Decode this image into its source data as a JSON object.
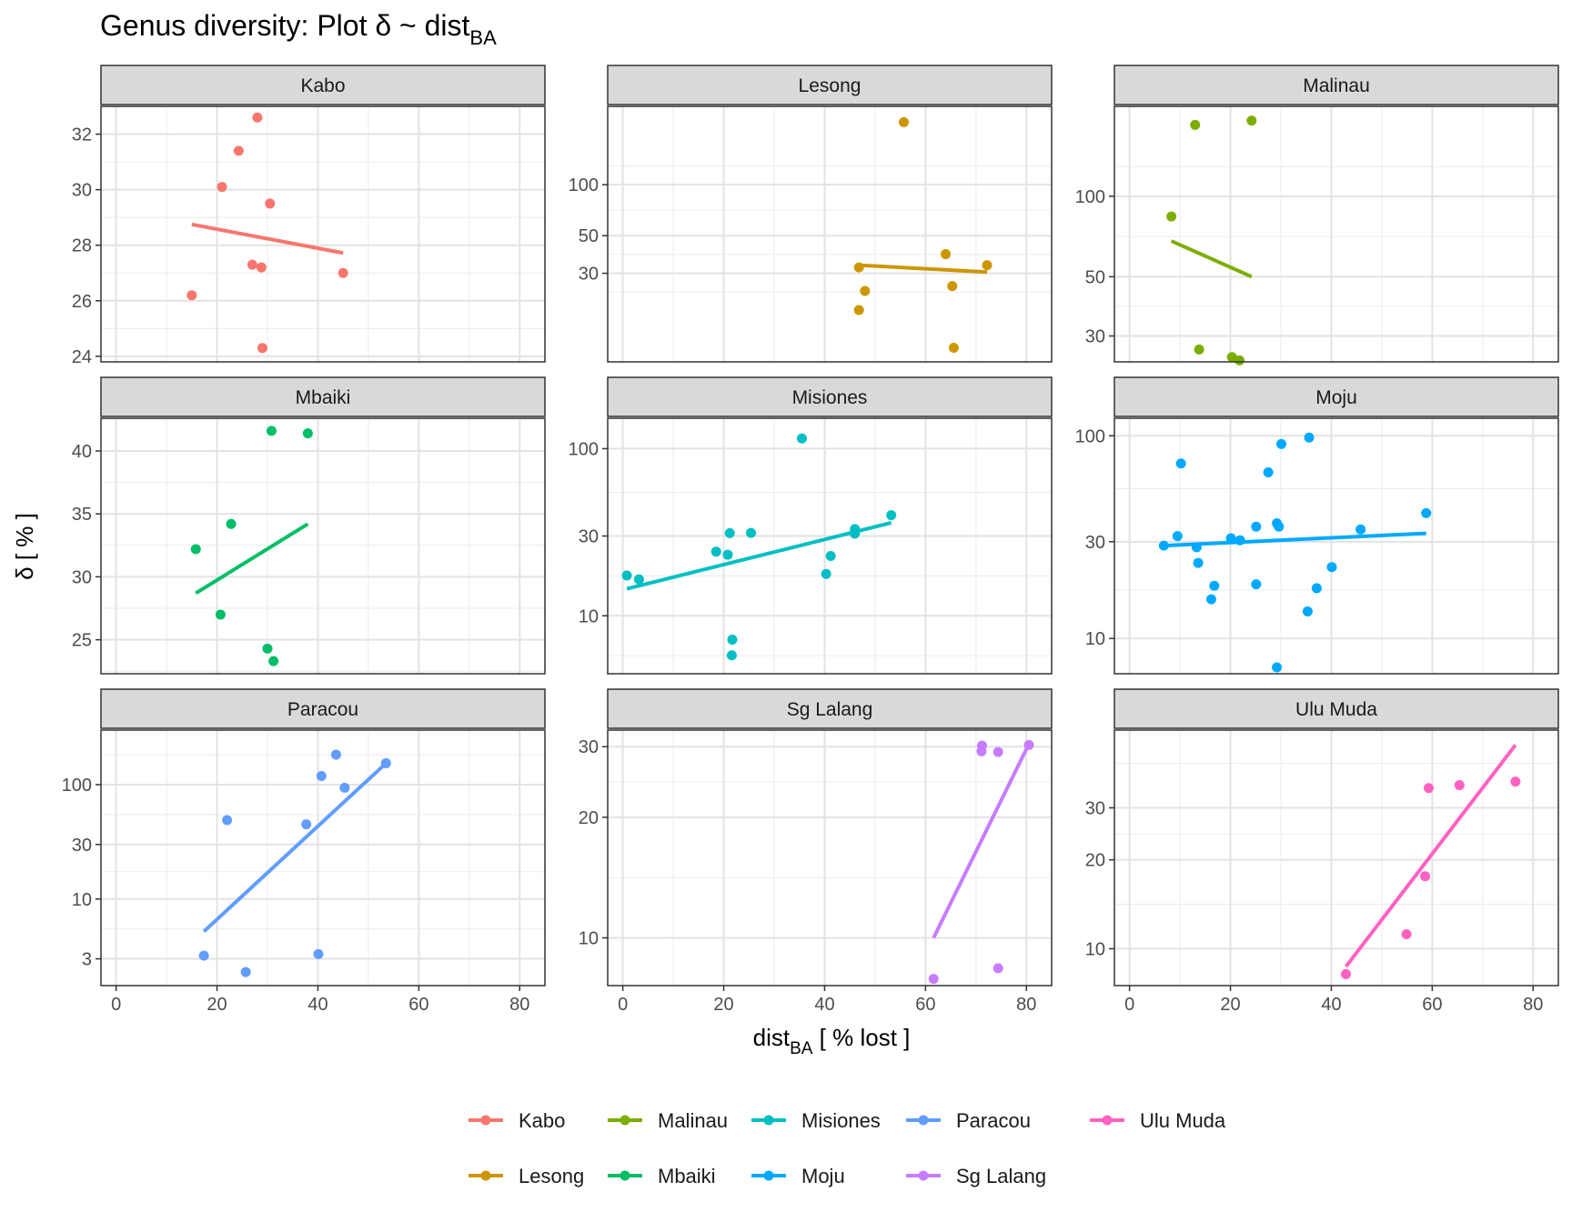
{
  "chart_data": {
    "type": "scatter",
    "title_parts": {
      "main": "Genus diversity: Plot δ ~ dist",
      "sub": "BA"
    },
    "xlabel_parts": {
      "main": "dist",
      "sub": "BA",
      "tail": " [ % lost ]"
    },
    "ylabel": "δ [ % ]",
    "x_range": [
      -3,
      85
    ],
    "x_ticks": [
      0,
      20,
      40,
      60,
      80
    ],
    "facets": [
      {
        "name": "Kabo",
        "color": "#F8766D",
        "y_scale": "linear",
        "y_range": [
          23.8,
          33.0
        ],
        "y_ticks": [
          24,
          26,
          28,
          30,
          32
        ],
        "points": [
          [
            28.0,
            32.6
          ],
          [
            24.3,
            31.4
          ],
          [
            21.0,
            30.1
          ],
          [
            30.5,
            29.5
          ],
          [
            27.0,
            27.3
          ],
          [
            28.8,
            27.2
          ],
          [
            45.0,
            27.0
          ],
          [
            15.0,
            26.2
          ],
          [
            29.0,
            24.3
          ]
        ],
        "fit": [
          [
            15.0,
            28.75
          ],
          [
            45.0,
            27.72
          ]
        ]
      },
      {
        "name": "Lesong",
        "color": "#CD9600",
        "y_scale": "log",
        "y_range": [
          9.0,
          290
        ],
        "y_ticks": [
          30,
          50,
          100
        ],
        "points": [
          [
            55.7,
            234
          ],
          [
            46.8,
            32.5
          ],
          [
            64.0,
            38.9
          ],
          [
            72.2,
            33.5
          ],
          [
            48.0,
            23.6
          ],
          [
            65.3,
            25.2
          ],
          [
            46.8,
            18.2
          ],
          [
            65.6,
            10.9
          ]
        ],
        "fit": [
          [
            46.8,
            33.5
          ],
          [
            72.2,
            30.5
          ]
        ]
      },
      {
        "name": "Malinau",
        "color": "#7CAE00",
        "y_scale": "log",
        "y_range": [
          24.0,
          217
        ],
        "y_ticks": [
          30,
          50,
          100
        ],
        "points": [
          [
            24.2,
            192
          ],
          [
            13.0,
            185
          ],
          [
            8.3,
            84
          ],
          [
            13.8,
            26.7
          ],
          [
            20.3,
            25.0
          ],
          [
            21.8,
            24.3
          ]
        ],
        "fit": [
          [
            8.3,
            68
          ],
          [
            24.2,
            50
          ]
        ]
      },
      {
        "name": "Mbaiki",
        "color": "#00BE67",
        "y_scale": "linear",
        "y_range": [
          22.3,
          42.6
        ],
        "y_ticks": [
          25,
          30,
          35,
          40
        ],
        "points": [
          [
            30.8,
            41.6
          ],
          [
            38.0,
            41.4
          ],
          [
            22.8,
            34.2
          ],
          [
            15.8,
            32.2
          ],
          [
            20.7,
            27.0
          ],
          [
            30.0,
            24.3
          ],
          [
            31.2,
            23.3
          ]
        ],
        "fit": [
          [
            15.8,
            28.7
          ],
          [
            38.0,
            34.2
          ]
        ]
      },
      {
        "name": "Misiones",
        "color": "#00BFC4",
        "y_scale": "log",
        "y_range": [
          4.5,
          152
        ],
        "y_ticks": [
          10,
          30,
          100
        ],
        "points": [
          [
            35.5,
            115
          ],
          [
            53.2,
            40
          ],
          [
            0.8,
            17.4
          ],
          [
            3.2,
            16.5
          ],
          [
            21.2,
            31.2
          ],
          [
            25.4,
            31.3
          ],
          [
            18.5,
            24.2
          ],
          [
            20.8,
            23.2
          ],
          [
            46.0,
            31.0
          ],
          [
            46.0,
            33.0
          ],
          [
            41.2,
            22.8
          ],
          [
            40.3,
            17.8
          ],
          [
            21.7,
            7.2
          ],
          [
            21.6,
            5.8
          ]
        ],
        "fit": [
          [
            0.8,
            14.5
          ],
          [
            53.2,
            36
          ]
        ]
      },
      {
        "name": "Moju",
        "color": "#00A9FF",
        "y_scale": "log",
        "y_range": [
          6.7,
          122
        ],
        "y_ticks": [
          10,
          30,
          100
        ],
        "points": [
          [
            35.6,
            98
          ],
          [
            30.1,
            91
          ],
          [
            10.2,
            73
          ],
          [
            27.5,
            66
          ],
          [
            58.8,
            41.5
          ],
          [
            29.2,
            37.0
          ],
          [
            29.6,
            35.6
          ],
          [
            25.1,
            35.6
          ],
          [
            45.8,
            34.5
          ],
          [
            9.5,
            32.0
          ],
          [
            20.1,
            31.2
          ],
          [
            21.9,
            30.5
          ],
          [
            6.8,
            28.7
          ],
          [
            13.3,
            28.2
          ],
          [
            13.6,
            23.6
          ],
          [
            40.1,
            22.5
          ],
          [
            16.8,
            18.2
          ],
          [
            25.1,
            18.5
          ],
          [
            37.1,
            17.7
          ],
          [
            16.2,
            15.6
          ],
          [
            35.3,
            13.6
          ],
          [
            29.2,
            7.2
          ]
        ],
        "fit": [
          [
            6.8,
            28.7
          ],
          [
            58.8,
            33.0
          ]
        ]
      },
      {
        "name": "Paracou",
        "color": "#619CFF",
        "y_scale": "log",
        "y_range": [
          1.75,
          300
        ],
        "y_ticks": [
          3,
          10,
          30,
          100
        ],
        "points": [
          [
            43.6,
            183
          ],
          [
            53.5,
            154
          ],
          [
            40.7,
            119
          ],
          [
            45.3,
            94
          ],
          [
            22.0,
            49
          ],
          [
            37.7,
            45
          ],
          [
            17.4,
            3.2
          ],
          [
            40.1,
            3.3
          ],
          [
            25.7,
            2.3
          ]
        ],
        "fit": [
          [
            17.4,
            5.2
          ],
          [
            53.5,
            154
          ]
        ]
      },
      {
        "name": "Sg Lalang",
        "color": "#C77CFF",
        "y_scale": "log",
        "y_range": [
          7.6,
          33.0
        ],
        "y_ticks": [
          10,
          20,
          30
        ],
        "points": [
          [
            71.2,
            30.2
          ],
          [
            80.5,
            30.3
          ],
          [
            71.1,
            29.2
          ],
          [
            74.4,
            29.1
          ],
          [
            74.4,
            8.4
          ],
          [
            61.6,
            7.9
          ]
        ],
        "fit": [
          [
            61.6,
            10.0
          ],
          [
            80.5,
            30.5
          ]
        ]
      },
      {
        "name": "Ulu Muda",
        "color": "#FF61C3",
        "y_scale": "log",
        "y_range": [
          7.5,
          55.0
        ],
        "y_ticks": [
          10,
          20,
          30
        ],
        "points": [
          [
            59.3,
            35.0
          ],
          [
            65.4,
            35.8
          ],
          [
            76.5,
            36.8
          ],
          [
            58.6,
            17.6
          ],
          [
            54.9,
            11.2
          ],
          [
            42.9,
            8.2
          ]
        ],
        "fit": [
          [
            42.9,
            8.7
          ],
          [
            76.5,
            49.0
          ]
        ]
      }
    ],
    "legend": {
      "position": "bottom",
      "rows": [
        [
          "Kabo",
          "Malinau",
          "Misiones",
          "Paracou",
          "Ulu Muda"
        ],
        [
          "Lesong",
          "Mbaiki",
          "Moju",
          "Sg Lalang"
        ]
      ]
    },
    "grid": true
  }
}
